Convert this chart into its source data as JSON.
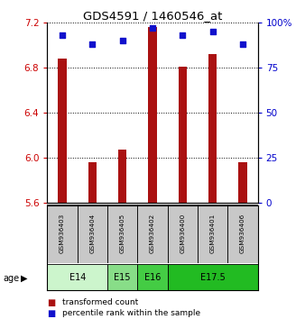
{
  "title": "GDS4591 / 1460546_at",
  "samples": [
    "GSM936403",
    "GSM936404",
    "GSM936405",
    "GSM936402",
    "GSM936400",
    "GSM936401",
    "GSM936406"
  ],
  "bar_values": [
    6.88,
    5.96,
    6.07,
    7.16,
    6.81,
    6.92,
    5.96
  ],
  "percentile_values": [
    93,
    88,
    90,
    97,
    93,
    95,
    88
  ],
  "y_min": 5.6,
  "y_max": 7.2,
  "y_ticks_left": [
    5.6,
    6.0,
    6.4,
    6.8,
    7.2
  ],
  "y_ticks_right": [
    0,
    25,
    50,
    75,
    100
  ],
  "bar_color": "#AA1111",
  "dot_color": "#1111CC",
  "age_groups": [
    {
      "label": "E14",
      "start": 0,
      "end": 2,
      "color": "#ccf5cc"
    },
    {
      "label": "E15",
      "start": 2,
      "end": 3,
      "color": "#88dd88"
    },
    {
      "label": "E16",
      "start": 3,
      "end": 4,
      "color": "#44cc44"
    },
    {
      "label": "E17.5",
      "start": 4,
      "end": 7,
      "color": "#22bb22"
    }
  ],
  "ylabel_left_color": "#cc0000",
  "ylabel_right_color": "#0000cc",
  "sample_box_color": "#c8c8c8"
}
